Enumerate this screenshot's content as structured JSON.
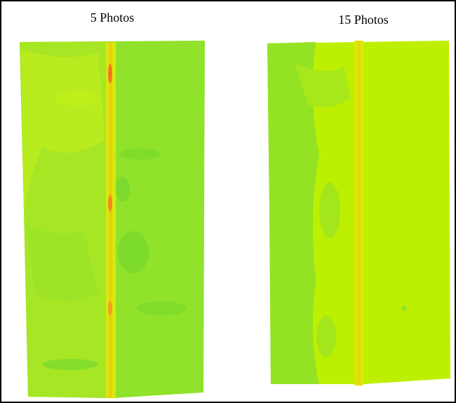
{
  "panels": [
    {
      "label": "5 Photos"
    },
    {
      "label": "15 Photos"
    }
  ]
}
